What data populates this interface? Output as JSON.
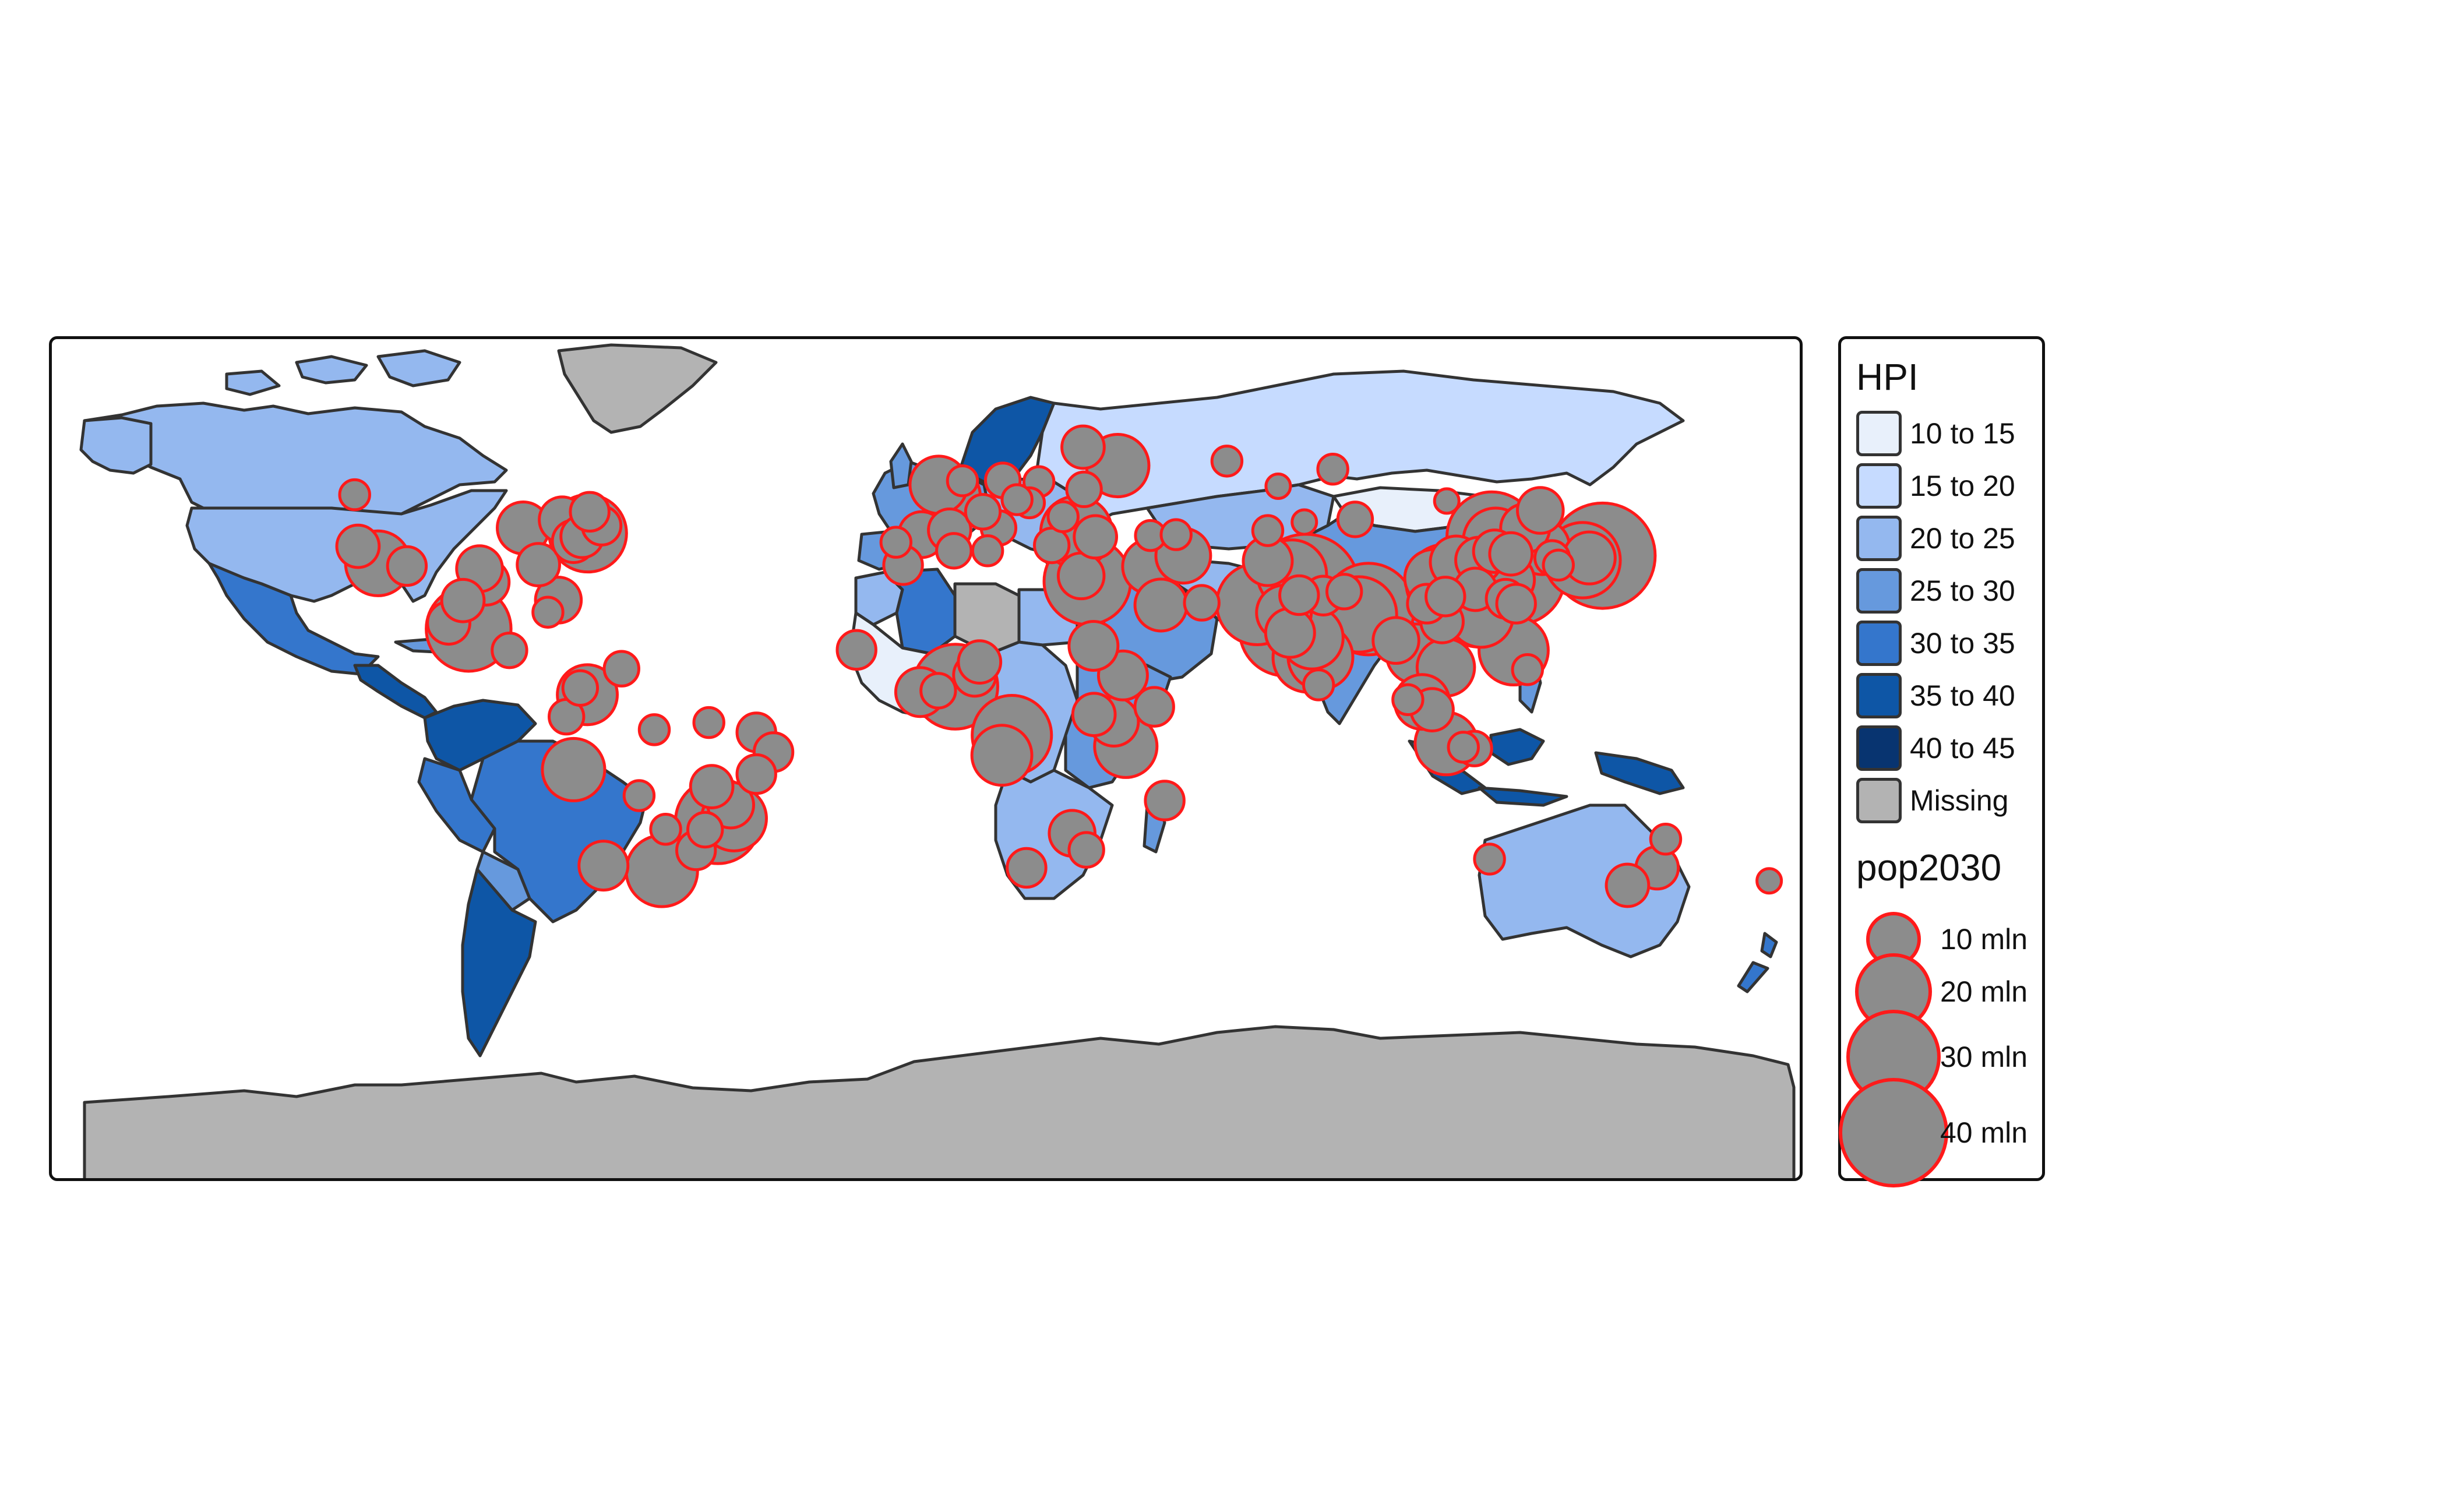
{
  "legend": {
    "hpi_title": "HPI",
    "hpi_classes": [
      {
        "label": "10 to 15",
        "color": "#e8f0fb"
      },
      {
        "label": "15 to 20",
        "color": "#c6dbff"
      },
      {
        "label": "20 to 25",
        "color": "#94b8ef"
      },
      {
        "label": "25 to 30",
        "color": "#6699dd"
      },
      {
        "label": "30 to 35",
        "color": "#3476cc"
      },
      {
        "label": "35 to 40",
        "color": "#0e56a6"
      },
      {
        "label": "40 to 45",
        "color": "#083470"
      },
      {
        "label": "Missing",
        "color": "#b3b3b3"
      }
    ],
    "pop_title": "pop2030",
    "pop_sizes": [
      {
        "label": "10 mln",
        "value": 10
      },
      {
        "label": "20 mln",
        "value": 20
      },
      {
        "label": "30 mln",
        "value": 30
      },
      {
        "label": "40 mln",
        "value": 40
      }
    ]
  },
  "colors": {
    "country_border": "#333333",
    "city_fill": "#8c8c8c",
    "city_border": "#ff1a1a",
    "antarctica": "#b3b3b3"
  },
  "cities": [
    {
      "lon": -74.0,
      "lat": 40.7,
      "pop": 20
    },
    {
      "lon": -118.2,
      "lat": 34.0,
      "pop": 14
    },
    {
      "lon": -87.6,
      "lat": 41.9,
      "pop": 9
    },
    {
      "lon": -95.4,
      "lat": 29.8,
      "pop": 7
    },
    {
      "lon": -99.1,
      "lat": 19.4,
      "pop": 24
    },
    {
      "lon": -79.4,
      "lat": 43.7,
      "pop": 7
    },
    {
      "lon": -122.4,
      "lat": 37.8,
      "pop": 6
    },
    {
      "lon": -84.4,
      "lat": 33.7,
      "pop": 6
    },
    {
      "lon": -80.2,
      "lat": 25.8,
      "pop": 7
    },
    {
      "lon": -77.0,
      "lat": 38.9,
      "pop": 6
    },
    {
      "lon": -75.2,
      "lat": 40.0,
      "pop": 6
    },
    {
      "lon": -71.1,
      "lat": 42.4,
      "pop": 5
    },
    {
      "lon": -96.8,
      "lat": 32.8,
      "pop": 7
    },
    {
      "lon": -112.1,
      "lat": 33.4,
      "pop": 5
    },
    {
      "lon": -103.3,
      "lat": 20.7,
      "pop": 6
    },
    {
      "lon": -100.3,
      "lat": 25.7,
      "pop": 6
    },
    {
      "lon": -73.6,
      "lat": 45.5,
      "pop": 5
    },
    {
      "lon": -123.1,
      "lat": 49.3,
      "pop": 3
    },
    {
      "lon": -90.5,
      "lat": 14.6,
      "pop": 4
    },
    {
      "lon": -82.4,
      "lat": 23.1,
      "pop": 3
    },
    {
      "lon": -74.1,
      "lat": 4.7,
      "pop": 12
    },
    {
      "lon": -66.9,
      "lat": 10.5,
      "pop": 4
    },
    {
      "lon": -77.0,
      "lat": -12.0,
      "pop": 13
    },
    {
      "lon": -78.5,
      "lat": -0.2,
      "pop": 4
    },
    {
      "lon": -46.6,
      "lat": -23.5,
      "pop": 24
    },
    {
      "lon": -43.2,
      "lat": -22.9,
      "pop": 14
    },
    {
      "lon": -58.4,
      "lat": -34.6,
      "pop": 17
    },
    {
      "lon": -70.7,
      "lat": -33.4,
      "pop": 8
    },
    {
      "lon": -47.9,
      "lat": -15.8,
      "pop": 6
    },
    {
      "lon": -38.5,
      "lat": -3.7,
      "pop": 5
    },
    {
      "lon": -34.9,
      "lat": -8.1,
      "pop": 5
    },
    {
      "lon": -43.9,
      "lat": -19.9,
      "pop": 7
    },
    {
      "lon": -38.5,
      "lat": -13.0,
      "pop": 5
    },
    {
      "lon": -49.3,
      "lat": -25.4,
      "pop": 4
    },
    {
      "lon": -51.2,
      "lat": -30.0,
      "pop": 5
    },
    {
      "lon": -48.5,
      "lat": -1.5,
      "pop": 3
    },
    {
      "lon": -60.0,
      "lat": -3.1,
      "pop": 3
    },
    {
      "lon": -63.2,
      "lat": -17.8,
      "pop": 3
    },
    {
      "lon": -57.6,
      "lat": -25.3,
      "pop": 3
    },
    {
      "lon": -75.6,
      "lat": 6.2,
      "pop": 4
    },
    {
      "lon": -0.1,
      "lat": 51.5,
      "pop": 11
    },
    {
      "lon": 2.35,
      "lat": 48.9,
      "pop": 12
    },
    {
      "lon": -3.7,
      "lat": 40.4,
      "pop": 7
    },
    {
      "lon": 12.5,
      "lat": 41.9,
      "pop": 4
    },
    {
      "lon": 13.4,
      "lat": 52.5,
      "pop": 4
    },
    {
      "lon": 37.6,
      "lat": 55.8,
      "pop": 13
    },
    {
      "lon": 30.3,
      "lat": 59.9,
      "pop": 6
    },
    {
      "lon": 28.9,
      "lat": 41.0,
      "pop": 17
    },
    {
      "lon": 32.9,
      "lat": 39.9,
      "pop": 6
    },
    {
      "lon": 9.2,
      "lat": 45.5,
      "pop": 4
    },
    {
      "lon": 21.0,
      "lat": 52.2,
      "pop": 3
    },
    {
      "lon": 19.0,
      "lat": 47.5,
      "pop": 3
    },
    {
      "lon": 26.1,
      "lat": 44.4,
      "pop": 3
    },
    {
      "lon": 30.5,
      "lat": 50.5,
      "pop": 4
    },
    {
      "lon": 2.2,
      "lat": 41.4,
      "pop": 6
    },
    {
      "lon": -9.1,
      "lat": 38.7,
      "pop": 3
    },
    {
      "lon": 4.9,
      "lat": 52.4,
      "pop": 3
    },
    {
      "lon": 16.4,
      "lat": 48.2,
      "pop": 3
    },
    {
      "lon": 23.7,
      "lat": 38.0,
      "pop": 4
    },
    {
      "lon": 44.5,
      "lat": 40.2,
      "pop": 3
    },
    {
      "lon": 49.9,
      "lat": 40.4,
      "pop": 3
    },
    {
      "lon": 60.6,
      "lat": 56.8,
      "pop": 3
    },
    {
      "lon": 82.9,
      "lat": 55.0,
      "pop": 3
    },
    {
      "lon": 31.2,
      "lat": 30.0,
      "pop": 25
    },
    {
      "lon": 29.9,
      "lat": 31.2,
      "pop": 7
    },
    {
      "lon": 3.4,
      "lat": 6.5,
      "pop": 24
    },
    {
      "lon": 15.3,
      "lat": -4.3,
      "pop": 21
    },
    {
      "lon": 36.8,
      "lat": -1.3,
      "pop": 8
    },
    {
      "lon": 38.7,
      "lat": 9.0,
      "pop": 8
    },
    {
      "lon": 32.5,
      "lat": 15.6,
      "pop": 8
    },
    {
      "lon": 13.2,
      "lat": -8.8,
      "pop": 12
    },
    {
      "lon": 28.0,
      "lat": -26.2,
      "pop": 7
    },
    {
      "lon": 18.4,
      "lat": -33.9,
      "pop": 5
    },
    {
      "lon": 31.0,
      "lat": -29.9,
      "pop": 4
    },
    {
      "lon": 39.3,
      "lat": -6.8,
      "pop": 13
    },
    {
      "lon": 32.6,
      "lat": 0.3,
      "pop": 6
    },
    {
      "lon": -17.4,
      "lat": 14.7,
      "pop": 5
    },
    {
      "lon": -4.0,
      "lat": 5.3,
      "pop": 8
    },
    {
      "lon": -0.2,
      "lat": 5.6,
      "pop": 4
    },
    {
      "lon": 7.5,
      "lat": 9.1,
      "pop": 6
    },
    {
      "lon": 8.5,
      "lat": 12.0,
      "pop": 6
    },
    {
      "lon": 47.5,
      "lat": -18.9,
      "pop": 5
    },
    {
      "lon": 45.3,
      "lat": 2.0,
      "pop": 5
    },
    {
      "lon": -7.6,
      "lat": 33.6,
      "pop": 5
    },
    {
      "lon": 3.1,
      "lat": 36.8,
      "pop": 4
    },
    {
      "lon": 10.2,
      "lat": 36.8,
      "pop": 3
    },
    {
      "lon": 44.4,
      "lat": 33.3,
      "pop": 10
    },
    {
      "lon": 51.4,
      "lat": 35.7,
      "pop": 10
    },
    {
      "lon": 46.7,
      "lat": 24.7,
      "pop": 9
    },
    {
      "lon": 55.3,
      "lat": 25.2,
      "pop": 4
    },
    {
      "lon": 69.2,
      "lat": 34.5,
      "pop": 8
    },
    {
      "lon": 67.0,
      "lat": 24.9,
      "pop": 22
    },
    {
      "lon": 74.3,
      "lat": 31.5,
      "pop": 16
    },
    {
      "lon": 77.2,
      "lat": 28.6,
      "pop": 38
    },
    {
      "lon": 72.9,
      "lat": 19.1,
      "pop": 28
    },
    {
      "lon": 88.4,
      "lat": 22.6,
      "pop": 19
    },
    {
      "lon": 90.4,
      "lat": 23.8,
      "pop": 28
    },
    {
      "lon": 77.6,
      "lat": 13.0,
      "pop": 16
    },
    {
      "lon": 80.3,
      "lat": 13.1,
      "pop": 14
    },
    {
      "lon": 78.5,
      "lat": 17.4,
      "pop": 13
    },
    {
      "lon": 72.6,
      "lat": 23.0,
      "pop": 10
    },
    {
      "lon": 73.9,
      "lat": 18.5,
      "pop": 8
    },
    {
      "lon": 80.9,
      "lat": 26.8,
      "pop": 5
    },
    {
      "lon": 75.8,
      "lat": 26.9,
      "pop": 5
    },
    {
      "lon": 85.3,
      "lat": 27.7,
      "pop": 4
    },
    {
      "lon": 79.9,
      "lat": 6.9,
      "pop": 3
    },
    {
      "lon": 96.2,
      "lat": 16.8,
      "pop": 7
    },
    {
      "lon": 100.5,
      "lat": 13.8,
      "pop": 12
    },
    {
      "lon": 105.9,
      "lat": 21.0,
      "pop": 6
    },
    {
      "lon": 106.7,
      "lat": 10.8,
      "pop": 11
    },
    {
      "lon": 101.7,
      "lat": 3.1,
      "pop": 10
    },
    {
      "lon": 103.8,
      "lat": 1.35,
      "pop": 6
    },
    {
      "lon": 106.8,
      "lat": -6.2,
      "pop": 13
    },
    {
      "lon": 112.7,
      "lat": -7.3,
      "pop": 4
    },
    {
      "lon": 110.4,
      "lat": -7.0,
      "pop": 3
    },
    {
      "lon": 98.7,
      "lat": 3.6,
      "pop": 3
    },
    {
      "lon": 120.98,
      "lat": 14.6,
      "pop": 16
    },
    {
      "lon": 123.9,
      "lat": 10.3,
      "pop": 3
    },
    {
      "lon": 121.5,
      "lat": 31.2,
      "pop": 32
    },
    {
      "lon": 116.4,
      "lat": 39.9,
      "pop": 27
    },
    {
      "lon": 113.3,
      "lat": 23.1,
      "pop": 16
    },
    {
      "lon": 114.1,
      "lat": 22.5,
      "pop": 14
    },
    {
      "lon": 104.1,
      "lat": 30.7,
      "pop": 11
    },
    {
      "lon": 106.5,
      "lat": 29.6,
      "pop": 20
    },
    {
      "lon": 114.3,
      "lat": 30.6,
      "pop": 10
    },
    {
      "lon": 117.2,
      "lat": 39.1,
      "pop": 14
    },
    {
      "lon": 108.9,
      "lat": 34.3,
      "pop": 9
    },
    {
      "lon": 118.8,
      "lat": 32.1,
      "pop": 9
    },
    {
      "lon": 120.2,
      "lat": 30.3,
      "pop": 8
    },
    {
      "lon": 123.4,
      "lat": 41.8,
      "pop": 8
    },
    {
      "lon": 126.6,
      "lat": 45.8,
      "pop": 7
    },
    {
      "lon": 113.6,
      "lat": 34.7,
      "pop": 7
    },
    {
      "lon": 117.0,
      "lat": 36.7,
      "pop": 6
    },
    {
      "lon": 120.4,
      "lat": 36.1,
      "pop": 6
    },
    {
      "lon": 112.9,
      "lat": 28.2,
      "pop": 6
    },
    {
      "lon": 102.7,
      "lat": 25.0,
      "pop": 5
    },
    {
      "lon": 106.6,
      "lat": 26.6,
      "pop": 5
    },
    {
      "lon": 119.3,
      "lat": 26.1,
      "pop": 5
    },
    {
      "lon": 87.6,
      "lat": 43.8,
      "pop": 4
    },
    {
      "lon": 126.98,
      "lat": 37.6,
      "pop": 10
    },
    {
      "lon": 129.1,
      "lat": 35.2,
      "pop": 4
    },
    {
      "lon": 139.7,
      "lat": 35.7,
      "pop": 37
    },
    {
      "lon": 135.5,
      "lat": 34.7,
      "pop": 19
    },
    {
      "lon": 136.9,
      "lat": 35.2,
      "pop": 9
    },
    {
      "lon": 130.4,
      "lat": 33.6,
      "pop": 3
    },
    {
      "lon": 121.5,
      "lat": 25.0,
      "pop": 5
    },
    {
      "lon": 151.2,
      "lat": -33.9,
      "pop": 6
    },
    {
      "lon": 144.96,
      "lat": -37.8,
      "pop": 6
    },
    {
      "lon": 153.0,
      "lat": -27.5,
      "pop": 3
    },
    {
      "lon": 115.9,
      "lat": -31.95,
      "pop": 3
    },
    {
      "lon": 174.8,
      "lat": -36.8,
      "pop": 2
    },
    {
      "lon": 106.9,
      "lat": 47.9,
      "pop": 2
    },
    {
      "lon": 71.4,
      "lat": 51.2,
      "pop": 2
    },
    {
      "lon": 76.9,
      "lat": 43.2,
      "pop": 2
    },
    {
      "lon": 69.2,
      "lat": 41.3,
      "pop": 3
    }
  ]
}
